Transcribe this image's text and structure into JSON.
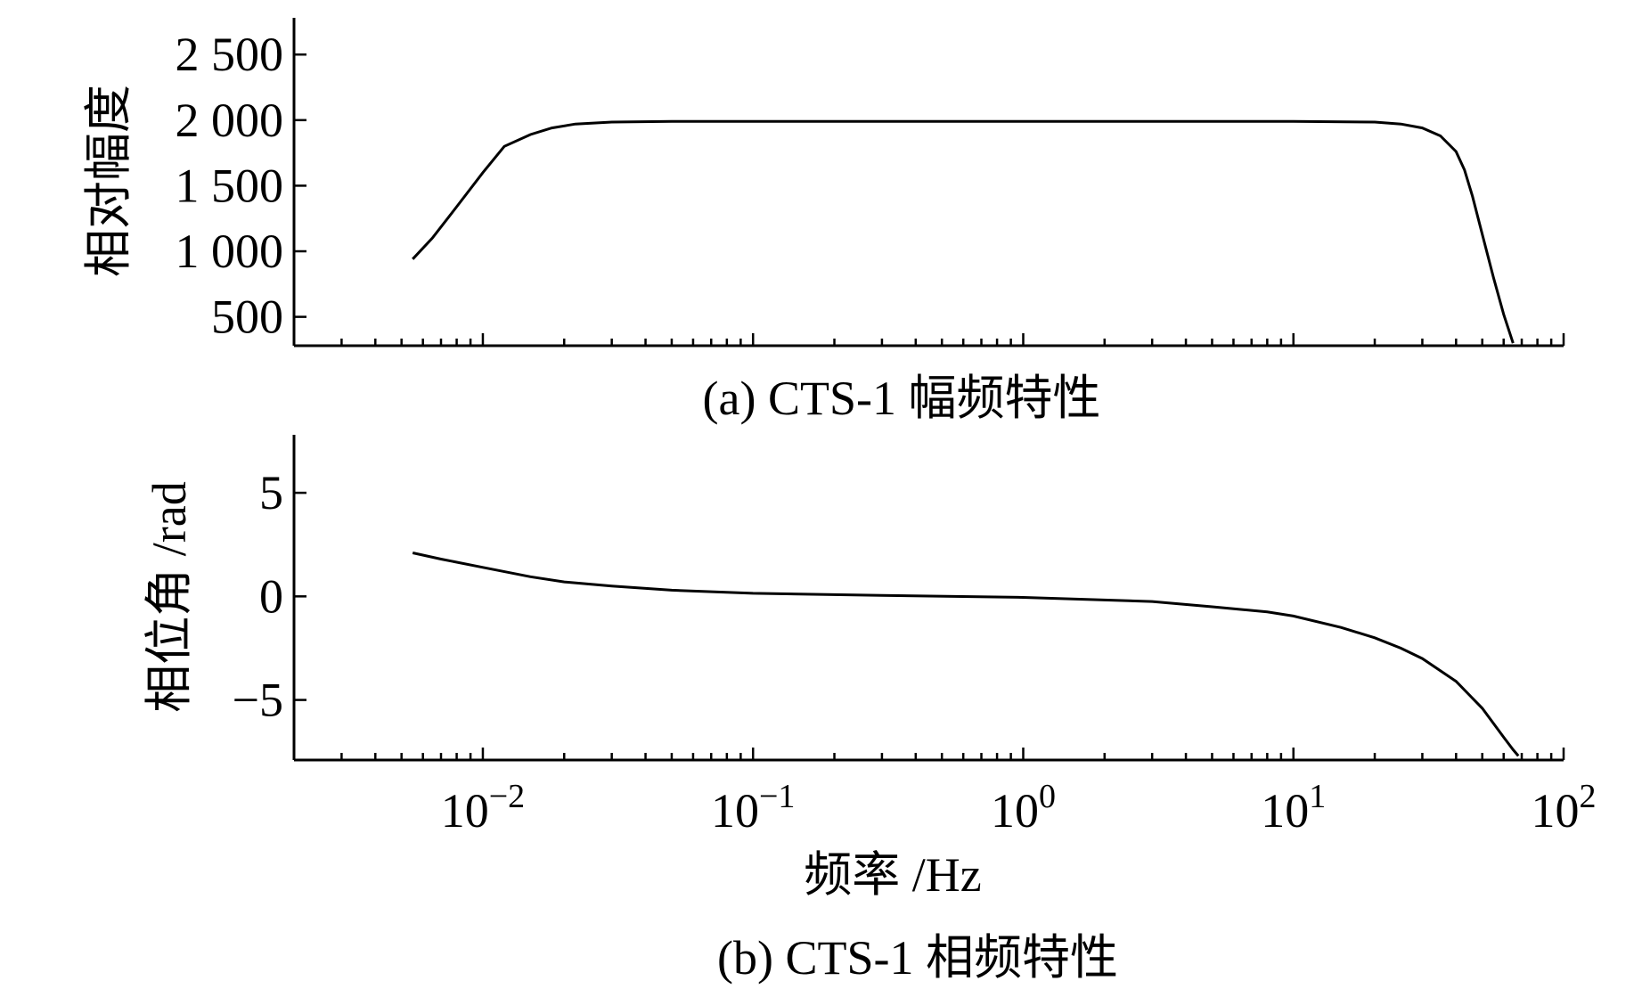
{
  "chart_data": [
    {
      "type": "line",
      "caption": "(a) CTS-1 幅频特性",
      "ylabel": "相对幅度",
      "xscale": "log",
      "xlim": [
        0.002,
        100
      ],
      "ylim": [
        280,
        2780
      ],
      "yticks": [
        500,
        1000,
        1500,
        2000,
        2500
      ],
      "ytick_labels": [
        "500",
        "1 000",
        "1 500",
        "2 000",
        "2 500"
      ],
      "grid": false,
      "series": [
        {
          "x": [
            0.0055,
            0.0065,
            0.008,
            0.01,
            0.012,
            0.015,
            0.018,
            0.022,
            0.03,
            0.05,
            0.1,
            0.3,
            1,
            3,
            10,
            20,
            25,
            30,
            35,
            40,
            43,
            46,
            50,
            55,
            60,
            65
          ],
          "y": [
            940,
            1100,
            1340,
            1600,
            1800,
            1890,
            1940,
            1970,
            1985,
            1990,
            1990,
            1990,
            1990,
            1990,
            1990,
            1985,
            1970,
            1940,
            1880,
            1760,
            1620,
            1420,
            1130,
            800,
            520,
            300
          ]
        }
      ]
    },
    {
      "type": "line",
      "caption": "(b) CTS-1 相频特性",
      "ylabel": "相位角 /rad",
      "xlabel": "频率 /Hz",
      "xscale": "log",
      "xlim": [
        0.002,
        100
      ],
      "ylim": [
        -7.9,
        7.8
      ],
      "yticks": [
        -5,
        0,
        5
      ],
      "ytick_labels": [
        "−5",
        "0",
        "5"
      ],
      "xticks": [
        0.01,
        0.1,
        1,
        10,
        100
      ],
      "xtick_labels": [
        {
          "base": "10",
          "exp": "−2"
        },
        {
          "base": "10",
          "exp": "−1"
        },
        {
          "base": "10",
          "exp": "0"
        },
        {
          "base": "10",
          "exp": "1"
        },
        {
          "base": "10",
          "exp": "2"
        }
      ],
      "grid": false,
      "series": [
        {
          "x": [
            0.0055,
            0.007,
            0.01,
            0.015,
            0.02,
            0.03,
            0.05,
            0.1,
            0.3,
            1,
            3,
            5,
            8,
            10,
            15,
            20,
            25,
            30,
            40,
            50,
            60,
            65,
            68
          ],
          "y": [
            2.1,
            1.8,
            1.4,
            0.95,
            0.7,
            0.5,
            0.3,
            0.15,
            0.05,
            -0.05,
            -0.25,
            -0.5,
            -0.75,
            -0.95,
            -1.5,
            -2.0,
            -2.5,
            -3.0,
            -4.1,
            -5.4,
            -6.8,
            -7.4,
            -7.7
          ]
        }
      ]
    }
  ]
}
